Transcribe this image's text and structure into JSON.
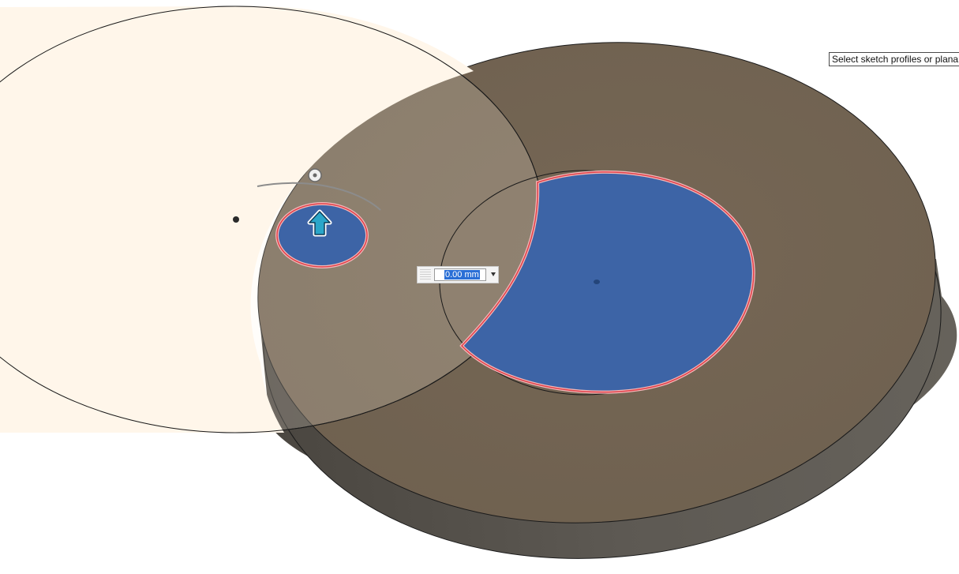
{
  "tooltip": {
    "text": "Select sketch profiles or planar fa"
  },
  "dimension": {
    "value": "0.00 mm"
  },
  "icons": {
    "extrude_arrow": "arrow-up-icon",
    "manipulator_handle": "rotation-handle-icon",
    "dropdown": "chevron-down-icon"
  },
  "colors": {
    "sketch_plane": "#fff6ea",
    "body_top": "#736452",
    "body_side": "#5a5650",
    "selected_profile": "#3d64a6",
    "profile_outline": "#e0404a",
    "selection_highlight": "#2a6fd6"
  }
}
